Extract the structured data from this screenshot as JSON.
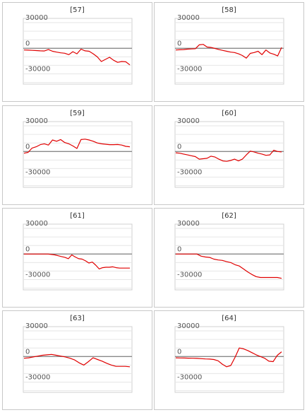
{
  "chart_data": [
    {
      "type": "line",
      "title": "[57]",
      "yticks": [
        "30000",
        "0",
        "-30000"
      ],
      "ylim": [
        -42000,
        35000
      ],
      "values": [
        -2000,
        -2200,
        -2400,
        -2700,
        -3000,
        -3200,
        -1500,
        -3500,
        -4500,
        -5300,
        -5800,
        -7500,
        -4000,
        -6500,
        -1000,
        -3000,
        -3500,
        -6500,
        -10000,
        -15500,
        -13000,
        -10500,
        -14000,
        -16500,
        -15500,
        -15800,
        -19500
      ],
      "line_color": "#e00000"
    },
    {
      "type": "line",
      "title": "[58]",
      "yticks": [
        "30000",
        "0",
        "-30000"
      ],
      "ylim": [
        -42000,
        35000
      ],
      "values": [
        -2000,
        -1800,
        -1500,
        -1000,
        -800,
        -500,
        4000,
        4500,
        1500,
        1000,
        -200,
        -1500,
        -2500,
        -3500,
        -4500,
        -5000,
        -6500,
        -8500,
        -11500,
        -6000,
        -5000,
        -3500,
        -7500,
        -2000,
        -5500,
        -7000,
        -9000,
        1000
      ],
      "line_color": "#e00000"
    },
    {
      "type": "line",
      "title": "[59]",
      "yticks": [
        "30000",
        "0",
        "-30000"
      ],
      "ylim": [
        -42000,
        35000
      ],
      "values": [
        -2000,
        -1000,
        4000,
        5500,
        8000,
        9000,
        7500,
        13500,
        12000,
        14000,
        10500,
        9000,
        6500,
        3500,
        14000,
        14500,
        13500,
        12000,
        10000,
        9000,
        8500,
        8000,
        8000,
        8200,
        7500,
        6000,
        5500
      ],
      "line_color": "#e00000"
    },
    {
      "type": "line",
      "title": "[60]",
      "yticks": [
        "30000",
        "0",
        "-30000"
      ],
      "ylim": [
        -42000,
        35000
      ],
      "values": [
        -1500,
        -2000,
        -3000,
        -4000,
        -5000,
        -6000,
        -9000,
        -8500,
        -8000,
        -5500,
        -6500,
        -9000,
        -11000,
        -11500,
        -10500,
        -9000,
        -11000,
        -9000,
        -4000,
        500,
        -500,
        -2000,
        -3000,
        -4500,
        -4000,
        1500,
        0,
        -500
      ],
      "line_color": "#e00000"
    },
    {
      "type": "line",
      "title": "[61]",
      "yticks": [
        "30000",
        "0",
        "-30000"
      ],
      "ylim": [
        -42000,
        35000
      ],
      "values": [
        0,
        0,
        0,
        0,
        0,
        0,
        0,
        0,
        -500,
        -1000,
        -2000,
        -3000,
        -4000,
        -5500,
        -1000,
        -3500,
        -5500,
        -6000,
        -8000,
        -10500,
        -9500,
        -13000,
        -17500,
        -16000,
        -15500,
        -15500,
        -15000,
        -16000,
        -16500,
        -16500,
        -16500,
        -16500
      ],
      "line_color": "#e00000"
    },
    {
      "type": "line",
      "title": "[62]",
      "yticks": [
        "30000",
        "0",
        "-30000"
      ],
      "ylim": [
        -42000,
        35000
      ],
      "values": [
        0,
        0,
        0,
        0,
        0,
        0,
        -2500,
        -3500,
        -4000,
        -6000,
        -7000,
        -7500,
        -9000,
        -10000,
        -12500,
        -14000,
        -17500,
        -21000,
        -24000,
        -26500,
        -27500,
        -27500,
        -27500,
        -27500,
        -27500,
        -28500
      ],
      "line_color": "#e00000"
    },
    {
      "type": "line",
      "title": "[63]",
      "yticks": [
        "30000",
        "0",
        "-30000"
      ],
      "ylim": [
        -42000,
        35000
      ],
      "values": [
        -2000,
        -1500,
        -500,
        500,
        1500,
        2000,
        2500,
        1500,
        500,
        -500,
        -2000,
        -4000,
        -7500,
        -10000,
        -6000,
        -1500,
        -3500,
        -5500,
        -8000,
        -10000,
        -11500,
        -11500,
        -11500,
        -12000
      ],
      "line_color": "#e00000"
    },
    {
      "type": "line",
      "title": "[64]",
      "yticks": [
        "30000",
        "0",
        "-30000"
      ],
      "ylim": [
        -42000,
        35000
      ],
      "values": [
        -1500,
        -1700,
        -1800,
        -1900,
        -2000,
        -2200,
        -2500,
        -2800,
        -3000,
        -3500,
        -5000,
        -9000,
        -12000,
        -10500,
        -1000,
        10000,
        9000,
        7000,
        4500,
        2000,
        0,
        -2000,
        -5500,
        -6000,
        1500,
        5500
      ],
      "line_color": "#e00000"
    }
  ]
}
